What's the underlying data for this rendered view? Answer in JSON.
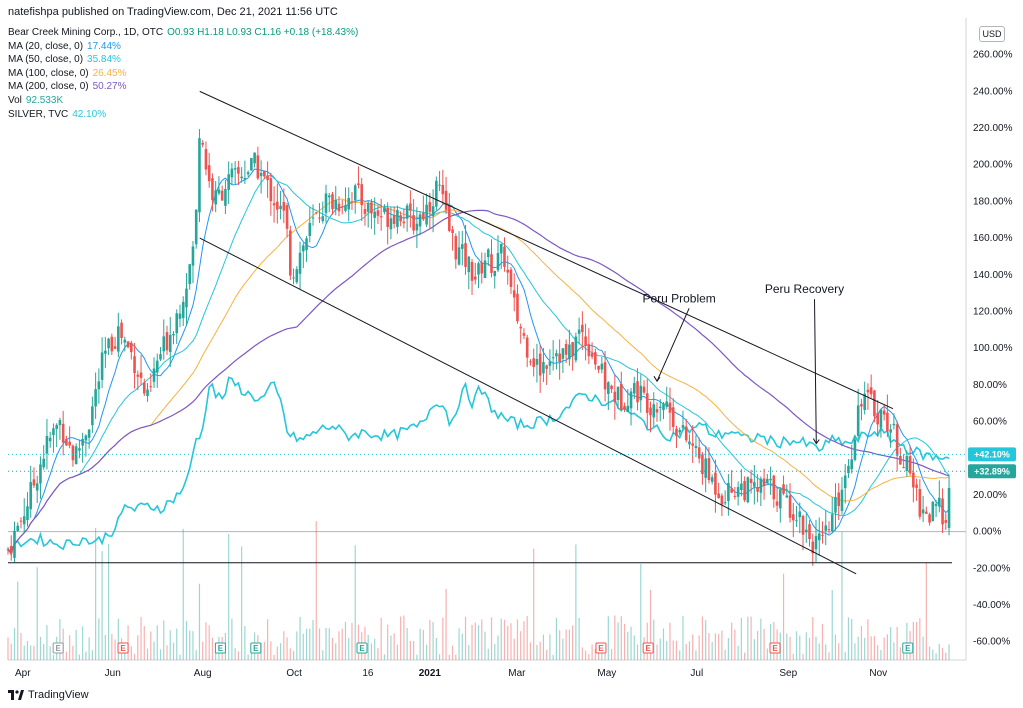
{
  "header": {
    "publisher": "natefishpa published on TradingView.com, Dec 21, 2021 11:56 UTC"
  },
  "legend": [
    {
      "label": "Bear Creek Mining Corp., 1D, OTC",
      "value": "O0.93  H1.18  L0.93  C1.16  +0.18 (+18.43%)",
      "color": "#089981"
    },
    {
      "label": "MA (20, close, 0)",
      "value": "17.44%",
      "color": "#2196f3"
    },
    {
      "label": "MA (50, close, 0)",
      "value": "35.84%",
      "color": "#26c6da"
    },
    {
      "label": "MA (100, close, 0)",
      "value": "26.45%",
      "color": "#f5b342"
    },
    {
      "label": "MA (200, close, 0)",
      "value": "50.27%",
      "color": "#7e57c2"
    },
    {
      "label": "Vol",
      "value": "92.533K",
      "color": "#26a69a"
    },
    {
      "label": "SILVER, TVC",
      "value": "42.10%",
      "color": "#26c6da"
    }
  ],
  "currency": "USD",
  "footer": {
    "brand": "TradingView"
  },
  "colors": {
    "up": "#26a69a",
    "down": "#ef5350",
    "ma20": "#2196f3",
    "ma50": "#26c6da",
    "ma100": "#f5b342",
    "ma200": "#7e57c2",
    "silver": "#26c6da",
    "badge_silver": "#26c6da",
    "badge_price": "#26a69a"
  },
  "chart_data": {
    "type": "candlestick",
    "y_axis_unit": "%",
    "ylim": [
      -70,
      280
    ],
    "y_ticks": [
      "260.00%",
      "240.00%",
      "220.00%",
      "200.00%",
      "180.00%",
      "160.00%",
      "140.00%",
      "120.00%",
      "100.00%",
      "80.00%",
      "60.00%",
      "40.00%",
      "20.00%",
      "0.00%",
      "-20.00%",
      "-40.00%",
      "-60.00%"
    ],
    "y_tick_values": [
      260,
      240,
      220,
      200,
      180,
      160,
      140,
      120,
      100,
      80,
      60,
      40,
      20,
      0,
      -20,
      -40,
      -60
    ],
    "x_ticks": [
      {
        "label": "Apr",
        "day": 10,
        "bold": false
      },
      {
        "label": "Jun",
        "day": 71,
        "bold": false
      },
      {
        "label": "Aug",
        "day": 132,
        "bold": false
      },
      {
        "label": "Oct",
        "day": 194,
        "bold": false
      },
      {
        "label": "16",
        "day": 244,
        "bold": false
      },
      {
        "label": "2021",
        "day": 286,
        "bold": true
      },
      {
        "label": "Mar",
        "day": 345,
        "bold": false
      },
      {
        "label": "May",
        "day": 406,
        "bold": false
      },
      {
        "label": "Jul",
        "day": 467,
        "bold": false
      },
      {
        "label": "Sep",
        "day": 529,
        "bold": false
      },
      {
        "label": "Nov",
        "day": 590,
        "bold": false
      }
    ],
    "x_range_days": [
      0,
      640
    ],
    "price_key_points": [
      [
        0,
        -10
      ],
      [
        8,
        5
      ],
      [
        15,
        20
      ],
      [
        25,
        45
      ],
      [
        35,
        60
      ],
      [
        45,
        40
      ],
      [
        55,
        60
      ],
      [
        65,
        95
      ],
      [
        75,
        110
      ],
      [
        85,
        95
      ],
      [
        95,
        70
      ],
      [
        100,
        90
      ],
      [
        108,
        105
      ],
      [
        115,
        120
      ],
      [
        122,
        140
      ],
      [
        127,
        160
      ],
      [
        130,
        225
      ],
      [
        135,
        195
      ],
      [
        140,
        180
      ],
      [
        148,
        190
      ],
      [
        158,
        195
      ],
      [
        168,
        200
      ],
      [
        178,
        185
      ],
      [
        188,
        170
      ],
      [
        192,
        140
      ],
      [
        197,
        150
      ],
      [
        205,
        165
      ],
      [
        215,
        180
      ],
      [
        225,
        180
      ],
      [
        235,
        185
      ],
      [
        245,
        175
      ],
      [
        255,
        172
      ],
      [
        265,
        175
      ],
      [
        275,
        168
      ],
      [
        285,
        178
      ],
      [
        292,
        190
      ],
      [
        297,
        170
      ],
      [
        303,
        155
      ],
      [
        310,
        148
      ],
      [
        318,
        138
      ],
      [
        323,
        150
      ],
      [
        330,
        145
      ],
      [
        336,
        152
      ],
      [
        342,
        125
      ],
      [
        350,
        105
      ],
      [
        360,
        88
      ],
      [
        370,
        100
      ],
      [
        380,
        95
      ],
      [
        388,
        110
      ],
      [
        395,
        100
      ],
      [
        405,
        80
      ],
      [
        415,
        72
      ],
      [
        425,
        78
      ],
      [
        435,
        70
      ],
      [
        445,
        72
      ],
      [
        455,
        55
      ],
      [
        465,
        45
      ],
      [
        475,
        30
      ],
      [
        485,
        20
      ],
      [
        495,
        25
      ],
      [
        505,
        22
      ],
      [
        515,
        25
      ],
      [
        525,
        18
      ],
      [
        535,
        10
      ],
      [
        545,
        -5
      ],
      [
        552,
        -8
      ],
      [
        560,
        10
      ],
      [
        567,
        30
      ],
      [
        572,
        45
      ],
      [
        578,
        75
      ],
      [
        584,
        70
      ],
      [
        590,
        65
      ],
      [
        597,
        60
      ],
      [
        604,
        45
      ],
      [
        612,
        30
      ],
      [
        618,
        15
      ],
      [
        624,
        8
      ],
      [
        630,
        12
      ],
      [
        636,
        10
      ],
      [
        640,
        32.89
      ]
    ],
    "silver_key_points": [
      [
        0,
        -12
      ],
      [
        10,
        -5
      ],
      [
        20,
        -4
      ],
      [
        30,
        -6
      ],
      [
        40,
        -7
      ],
      [
        50,
        -4
      ],
      [
        60,
        -6
      ],
      [
        70,
        0
      ],
      [
        75,
        5
      ],
      [
        80,
        15
      ],
      [
        85,
        12
      ],
      [
        95,
        14
      ],
      [
        105,
        13
      ],
      [
        115,
        20
      ],
      [
        122,
        28
      ],
      [
        127,
        50
      ],
      [
        132,
        55
      ],
      [
        137,
        85
      ],
      [
        140,
        75
      ],
      [
        145,
        72
      ],
      [
        150,
        82
      ],
      [
        155,
        80
      ],
      [
        162,
        75
      ],
      [
        172,
        72
      ],
      [
        180,
        80
      ],
      [
        186,
        68
      ],
      [
        190,
        52
      ],
      [
        200,
        50
      ],
      [
        210,
        55
      ],
      [
        220,
        58
      ],
      [
        230,
        52
      ],
      [
        240,
        54
      ],
      [
        250,
        53
      ],
      [
        260,
        52
      ],
      [
        270,
        55
      ],
      [
        280,
        58
      ],
      [
        290,
        72
      ],
      [
        296,
        68
      ],
      [
        300,
        58
      ],
      [
        305,
        70
      ],
      [
        310,
        78
      ],
      [
        315,
        70
      ],
      [
        320,
        78
      ],
      [
        330,
        65
      ],
      [
        340,
        60
      ],
      [
        350,
        58
      ],
      [
        360,
        60
      ],
      [
        370,
        62
      ],
      [
        380,
        68
      ],
      [
        390,
        75
      ],
      [
        400,
        72
      ],
      [
        410,
        70
      ],
      [
        420,
        65
      ],
      [
        430,
        60
      ],
      [
        440,
        55
      ],
      [
        450,
        52
      ],
      [
        460,
        55
      ],
      [
        470,
        58
      ],
      [
        480,
        52
      ],
      [
        490,
        55
      ],
      [
        500,
        50
      ],
      [
        510,
        52
      ],
      [
        520,
        48
      ],
      [
        530,
        50
      ],
      [
        540,
        48
      ],
      [
        550,
        45
      ],
      [
        560,
        50
      ],
      [
        570,
        48
      ],
      [
        580,
        52
      ],
      [
        590,
        55
      ],
      [
        600,
        50
      ],
      [
        610,
        45
      ],
      [
        620,
        42
      ],
      [
        630,
        40
      ],
      [
        640,
        42.1
      ]
    ],
    "trendlines": [
      {
        "from": [
          130,
          240
        ],
        "to": [
          600,
          67
        ]
      },
      {
        "from": [
          130,
          160
        ],
        "to": [
          575,
          -23
        ]
      },
      {
        "from": [
          0,
          -17
        ],
        "to": [
          640,
          -17
        ]
      }
    ],
    "horizontal_line": {
      "value": 0
    },
    "annotations": [
      {
        "text": "Peru Problem",
        "at": [
          455,
          125
        ],
        "arrow_to": [
          440,
          82
        ]
      },
      {
        "text": "Peru Recovery",
        "at": [
          540,
          130
        ],
        "arrow_to": [
          548,
          48
        ]
      }
    ],
    "right_badges": [
      {
        "text": "+42.10%",
        "value": 42.1,
        "color_key": "badge_silver"
      },
      {
        "text": "+32.89%",
        "value": 32.89,
        "color_key": "badge_price"
      }
    ],
    "earnings_events": [
      {
        "day": 34,
        "type": "E",
        "color": "#9598a1"
      },
      {
        "day": 78,
        "type": "E",
        "color": "#ef5350"
      },
      {
        "day": 144,
        "type": "E",
        "color": "#26a69a"
      },
      {
        "day": 168,
        "type": "E",
        "color": "#26a69a"
      },
      {
        "day": 240,
        "type": "E",
        "color": "#26a69a"
      },
      {
        "day": 402,
        "type": "E",
        "color": "#ef5350"
      },
      {
        "day": 434,
        "type": "E",
        "color": "#ef5350"
      },
      {
        "day": 520,
        "type": "E",
        "color": "#ef5350"
      },
      {
        "day": 610,
        "type": "E",
        "color": "#26a69a"
      }
    ]
  }
}
